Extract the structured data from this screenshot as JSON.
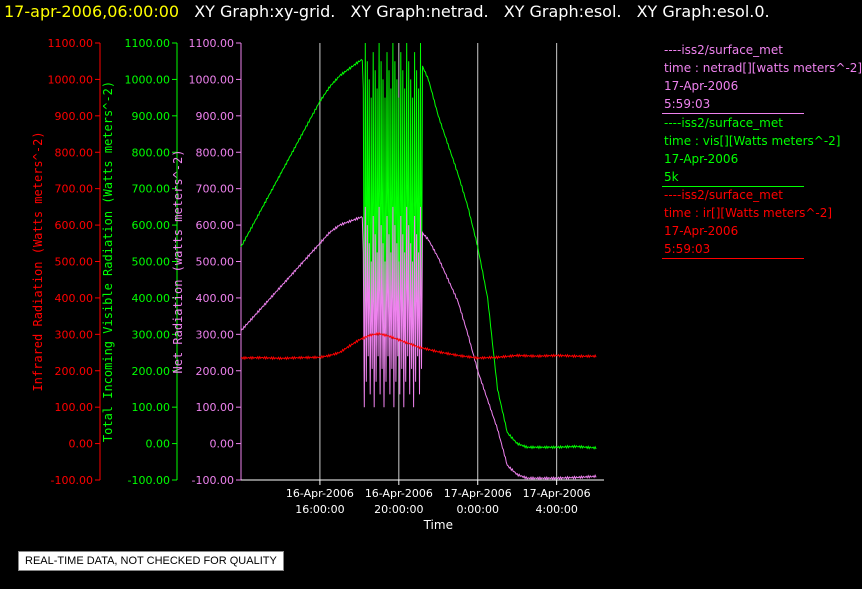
{
  "header": {
    "timestamp": "17-apr-2006,06:00:00",
    "graph_titles": [
      "XY Graph:xy-grid.",
      "XY Graph:netrad.",
      "XY Graph:esol.",
      "XY Graph:esol.0."
    ]
  },
  "legend": [
    {
      "series": "netrad",
      "color": "#ee82ee",
      "lines": [
        "----iss2/surface_met",
        "time : netrad[][watts meters^-2]",
        "17-Apr-2006",
        "5:59:03"
      ]
    },
    {
      "series": "vis",
      "color": "#00ff00",
      "lines": [
        "----iss2/surface_met",
        "time : vis[][Watts meters^-2]",
        "17-Apr-2006",
        "5k"
      ]
    },
    {
      "series": "ir",
      "color": "#ff0000",
      "lines": [
        "----iss2/surface_met",
        "time : ir[][Watts meters^-2]",
        "17-Apr-2006",
        "5:59:03"
      ]
    }
  ],
  "footer": {
    "quality_note": "REAL-TIME DATA, NOT CHECKED FOR QUALITY"
  },
  "chart_data": {
    "type": "line",
    "xlabel": "Time",
    "x_ticks": [
      {
        "x": 16,
        "date": "16-Apr-2006",
        "time": "16:00:00"
      },
      {
        "x": 20,
        "date": "16-Apr-2006",
        "time": "20:00:00"
      },
      {
        "x": 24,
        "date": "17-Apr-2006",
        "time": "0:00:00"
      },
      {
        "x": 28,
        "date": "17-Apr-2006",
        "time": "4:00:00"
      }
    ],
    "xlim": [
      12.0,
      30.4
    ],
    "grid": "vertical lines at x ticks",
    "y_axes": [
      {
        "name": "ir",
        "label": "Infrared Radiation (Watts meters^-2)",
        "color": "#ff0000",
        "ylim": [
          -100,
          1100
        ]
      },
      {
        "name": "vis",
        "label": "Total Incoming Visible Radiation (Watts meters^-2)",
        "color": "#00ff00",
        "ylim": [
          -100,
          1100
        ]
      },
      {
        "name": "netrad",
        "label": "Net Radiation (watts meters^-2)",
        "color": "#ee82ee",
        "ylim": [
          -100,
          1100
        ]
      }
    ],
    "y_ticks": [
      "-100.00",
      "0.00",
      "100.00",
      "200.00",
      "300.00",
      "400.00",
      "500.00",
      "600.00",
      "700.00",
      "800.00",
      "900.00",
      "1000.00",
      "1100.00"
    ],
    "series": [
      {
        "name": "ir",
        "color": "#ff0000",
        "x": [
          12.0,
          13.0,
          14.0,
          15.0,
          16.0,
          16.5,
          17.0,
          17.5,
          18.0,
          18.5,
          19.0,
          19.5,
          20.0,
          20.5,
          21.0,
          22.0,
          23.0,
          24.0,
          25.0,
          26.0,
          27.0,
          28.0,
          29.0,
          30.0
        ],
        "values": [
          235,
          236,
          234,
          236,
          237,
          242,
          250,
          268,
          285,
          297,
          302,
          295,
          285,
          275,
          265,
          252,
          242,
          235,
          237,
          242,
          240,
          242,
          240,
          240
        ]
      },
      {
        "name": "vis",
        "color": "#00ff00",
        "x": [
          12.0,
          13.0,
          14.0,
          15.0,
          16.0,
          16.5,
          17.0,
          17.5,
          18.0,
          18.5,
          19.0,
          19.5,
          20.0,
          20.5,
          21.0,
          21.5,
          22.0,
          22.5,
          23.0,
          23.5,
          24.0,
          24.5,
          25.0,
          25.5,
          26.0,
          26.5,
          27.0,
          28.0,
          29.0,
          30.0
        ],
        "values": [
          540,
          640,
          740,
          840,
          940,
          980,
          1010,
          1030,
          1050,
          1065,
          1080,
          1090,
          1100,
          1090,
          1060,
          1000,
          900,
          820,
          740,
          650,
          540,
          400,
          150,
          30,
          0,
          -10,
          -10,
          -10,
          -8,
          -12
        ],
        "spikes": {
          "x_range": [
            18.2,
            21.2
          ],
          "low": 200,
          "high": 1100
        }
      },
      {
        "name": "netrad",
        "color": "#ee82ee",
        "x": [
          12.0,
          13.0,
          14.0,
          15.0,
          16.0,
          16.5,
          17.0,
          17.5,
          18.0,
          18.5,
          19.0,
          19.5,
          20.0,
          20.5,
          21.0,
          21.5,
          22.0,
          22.5,
          23.0,
          23.5,
          24.0,
          24.5,
          25.0,
          25.5,
          26.0,
          26.5,
          27.0,
          28.0,
          29.0,
          30.0
        ],
        "values": [
          310,
          370,
          430,
          490,
          550,
          580,
          600,
          610,
          620,
          628,
          635,
          640,
          630,
          615,
          590,
          560,
          510,
          450,
          390,
          300,
          200,
          120,
          40,
          -60,
          -85,
          -95,
          -95,
          -95,
          -93,
          -90
        ],
        "spikes": {
          "x_range": [
            18.2,
            21.2
          ],
          "low": 100,
          "high": 650
        }
      }
    ]
  }
}
